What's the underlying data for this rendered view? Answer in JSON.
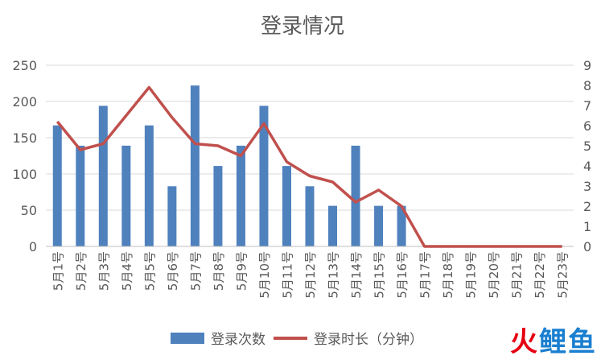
{
  "chart_data": {
    "type": "bar",
    "title": "登录情况",
    "categories": [
      "5月1号",
      "5月2号",
      "5月3号",
      "5月4号",
      "5月5号",
      "5月6号",
      "5月7号",
      "5月8号",
      "5月9号",
      "5月10号",
      "5月11号",
      "5月12号",
      "5月13号",
      "5月14号",
      "5月15号",
      "5月16号",
      "5月17号",
      "5月18号",
      "5月19号",
      "5月20号",
      "5月21号",
      "5月22号",
      "5月23号"
    ],
    "series": [
      {
        "name": "登录次数",
        "type": "bar",
        "axis": "left",
        "color": "#4f81bd",
        "values": [
          167,
          139,
          194,
          139,
          167,
          83,
          222,
          111,
          139,
          194,
          111,
          83,
          56,
          139,
          56,
          56,
          0,
          0,
          0,
          0,
          0,
          0,
          0
        ]
      },
      {
        "name": "登录时长（分钟）",
        "type": "line",
        "axis": "right",
        "color": "#c0504d",
        "values": [
          6.2,
          4.8,
          5.1,
          6.5,
          7.9,
          6.4,
          5.1,
          5.0,
          4.5,
          6.1,
          4.2,
          3.5,
          3.2,
          2.2,
          2.8,
          2.0,
          0,
          0,
          0,
          0,
          0,
          0,
          0
        ]
      }
    ],
    "y_left": {
      "ylim": [
        0,
        250
      ],
      "ticks": [
        0,
        50,
        100,
        150,
        200,
        250
      ]
    },
    "y_right": {
      "ylim": [
        0,
        9
      ],
      "ticks": [
        0,
        1,
        2,
        3,
        4,
        5,
        6,
        7,
        8,
        9
      ]
    },
    "grid": true,
    "legend_position": "bottom"
  },
  "watermark": {
    "part1": "火",
    "part2": "鲤鱼"
  }
}
